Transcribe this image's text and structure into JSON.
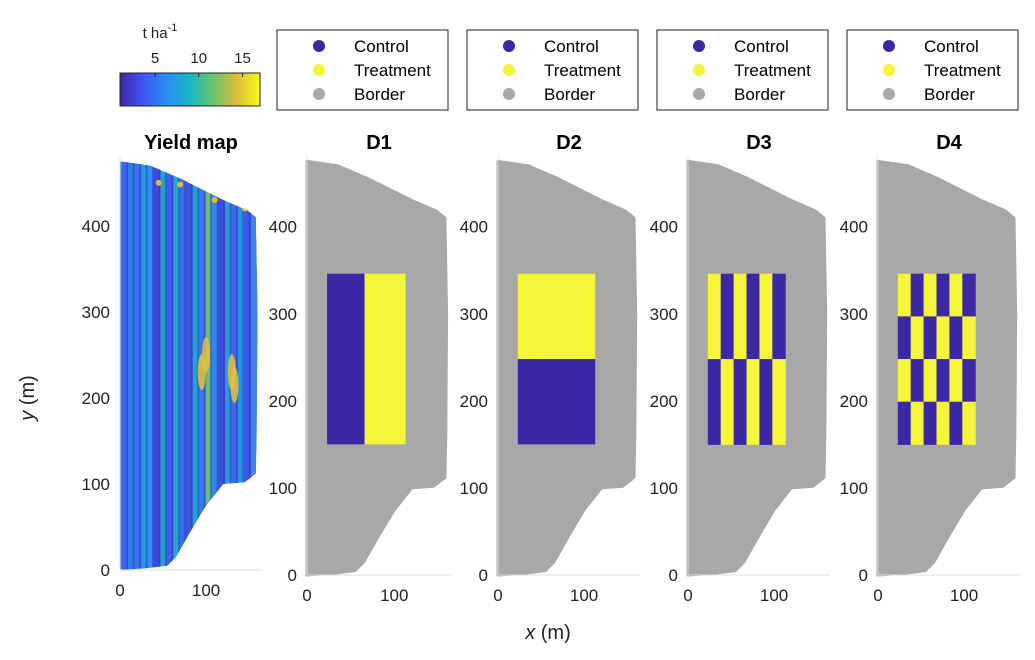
{
  "colors": {
    "control": "#3a28a4",
    "treatment": "#f5f53a",
    "border": "#a8a8a8",
    "colormap": [
      "#3e26a8",
      "#3d57f0",
      "#2c8ff7",
      "#17b5c3",
      "#6dc46a",
      "#d9bb3d",
      "#f9fb15"
    ]
  },
  "legend": {
    "labels": [
      "Control",
      "Treatment",
      "Border"
    ]
  },
  "colorbar": {
    "title": "t ha",
    "title_sup": "-1",
    "ticks": [
      "5",
      "10",
      "15"
    ],
    "range": [
      1,
      17
    ]
  },
  "axes": {
    "xlabel_var": "x",
    "xlabel_unit": " (m)",
    "ylabel_var": "y",
    "ylabel_unit": " (m)",
    "xticks": [
      0,
      100
    ],
    "yticks": [
      0,
      100,
      200,
      300,
      400
    ],
    "xlim": [
      0,
      165
    ],
    "ylim": [
      0,
      480
    ]
  },
  "chart_data": [
    {
      "type": "scatter",
      "title": "Yield map",
      "description_values": {
        "field_boundary_x": [
          0,
          160,
          160,
          140,
          100,
          80,
          55,
          0
        ],
        "field_boundary_y": [
          475,
          410,
          105,
          100,
          70,
          40,
          5,
          0
        ]
      },
      "color_range_t_ha": [
        1,
        17
      ]
    },
    {
      "type": "scatter",
      "title": "D1",
      "plots": [
        {
          "group": "Control",
          "x": [
            23,
            66
          ],
          "y": [
            150,
            346
          ]
        },
        {
          "group": "Treatment",
          "x": [
            66,
            113
          ],
          "y": [
            150,
            346
          ]
        }
      ]
    },
    {
      "type": "scatter",
      "title": "D2",
      "plots": [
        {
          "group": "Treatment",
          "x": [
            23,
            113
          ],
          "y": [
            248,
            346
          ]
        },
        {
          "group": "Control",
          "x": [
            23,
            113
          ],
          "y": [
            150,
            248
          ]
        }
      ]
    },
    {
      "type": "scatter",
      "title": "D3",
      "strips": 6,
      "rows": 2,
      "pattern": [
        [
          "Treatment",
          "Control",
          "Treatment",
          "Control",
          "Treatment",
          "Control"
        ],
        [
          "Control",
          "Treatment",
          "Control",
          "Treatment",
          "Control",
          "Treatment"
        ]
      ],
      "extent_x": [
        23,
        113
      ],
      "extent_y": [
        150,
        346
      ]
    },
    {
      "type": "scatter",
      "title": "D4",
      "strips": 6,
      "rows": 4,
      "pattern": [
        [
          "Treatment",
          "Control",
          "Treatment",
          "Control",
          "Treatment",
          "Control"
        ],
        [
          "Control",
          "Treatment",
          "Control",
          "Treatment",
          "Control",
          "Treatment"
        ],
        [
          "Treatment",
          "Control",
          "Treatment",
          "Control",
          "Treatment",
          "Control"
        ],
        [
          "Control",
          "Treatment",
          "Control",
          "Treatment",
          "Control",
          "Treatment"
        ]
      ],
      "extent_x": [
        23,
        113
      ],
      "extent_y": [
        150,
        346
      ]
    }
  ]
}
